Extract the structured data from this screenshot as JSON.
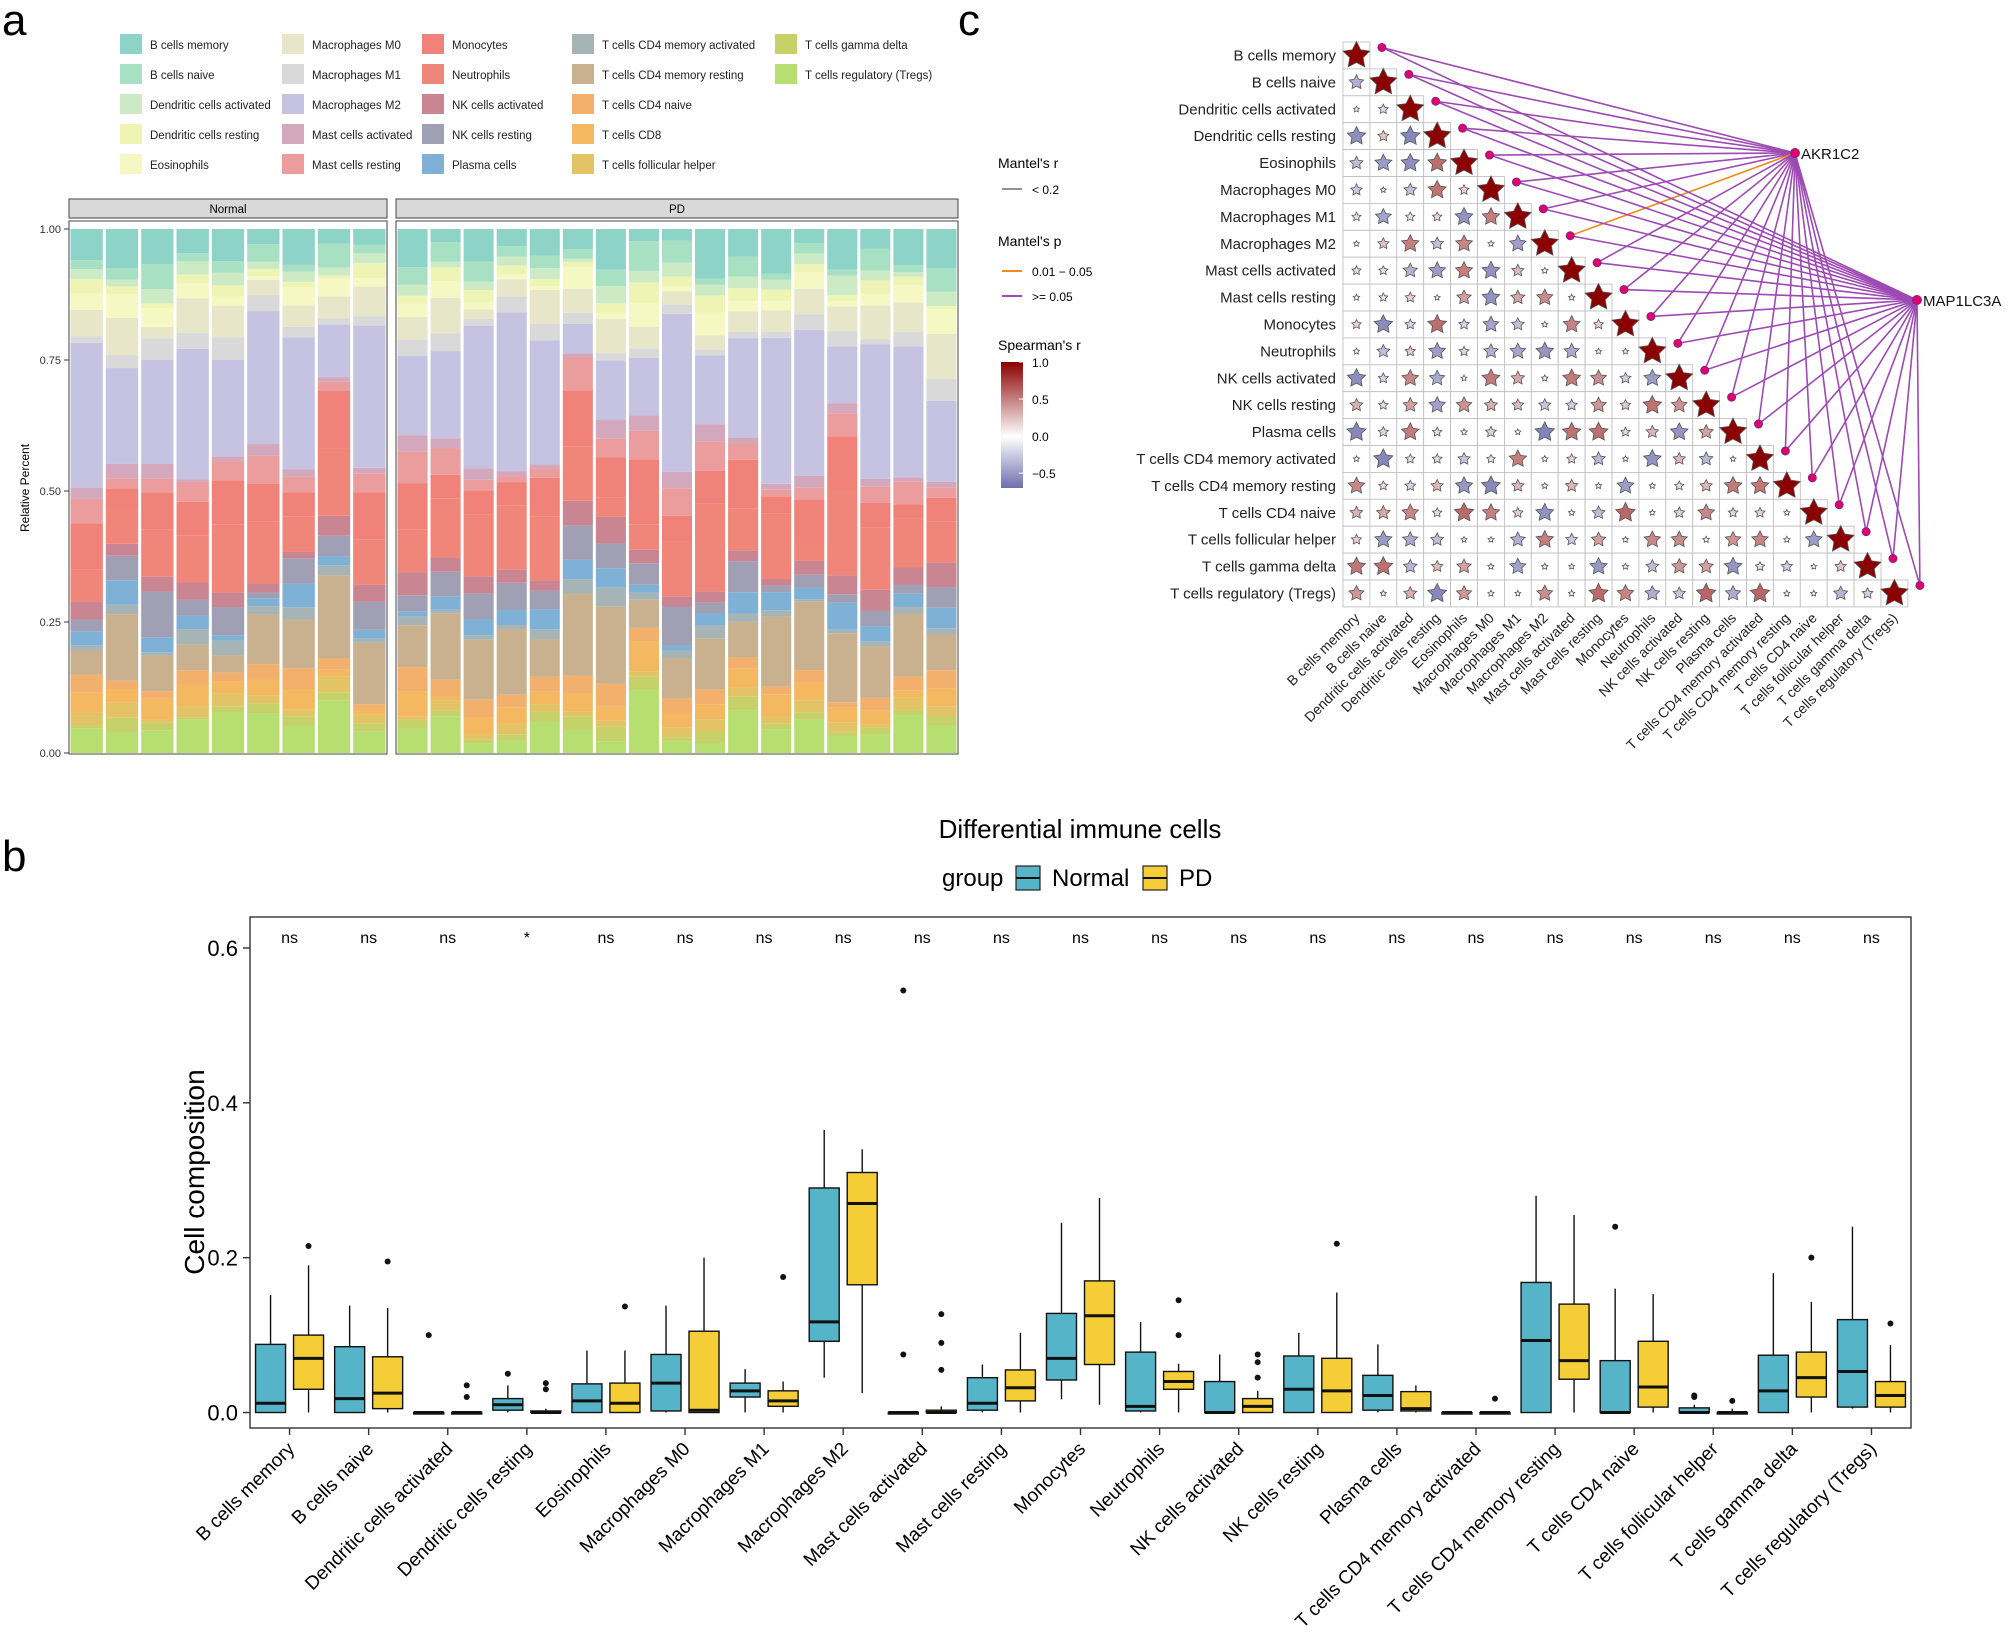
{
  "panels": {
    "a": "a",
    "b": "b",
    "c": "c"
  },
  "cell_types": [
    "B cells memory",
    "B cells naive",
    "Dendritic cells activated",
    "Dendritic cells resting",
    "Eosinophils",
    "Macrophages M0",
    "Macrophages M1",
    "Macrophages M2",
    "Mast cells activated",
    "Mast cells resting",
    "Monocytes",
    "Neutrophils",
    "NK cells activated",
    "NK cells resting",
    "Plasma cells",
    "T cells CD4 memory activated",
    "T cells CD4 memory resting",
    "T cells CD4 naive",
    "T cells CD8",
    "T cells follicular helper",
    "T cells gamma delta",
    "T cells regulatory (Tregs)"
  ],
  "cell_colors": [
    "#8dd3c7",
    "#a8e0c4",
    "#ccebc5",
    "#eef5b4",
    "#f6f8c3",
    "#e8e6c8",
    "#d9d9d9",
    "#c6c3e2",
    "#d4a8bc",
    "#eb9c9c",
    "#f0827a",
    "#f08679",
    "#c98592",
    "#a09fb3",
    "#7fb1d6",
    "#a6b4b5",
    "#c9b18f",
    "#f2b06c",
    "#f4b860",
    "#e2c466",
    "#c7d16a",
    "#b6de70"
  ],
  "chart_data": [
    {
      "type": "bar",
      "subtype": "stacked-100",
      "facets": [
        "Normal",
        "PD"
      ],
      "ylabel": "Relative Percent",
      "ylim": [
        0,
        1
      ],
      "yticks": [
        "0.00",
        "0.25",
        "0.50",
        "0.75",
        "1.00"
      ],
      "samples_per_facet": [
        9,
        17
      ]
    },
    {
      "type": "box",
      "title": "Differential immune cells",
      "legend_title": "group",
      "groups": [
        "Normal",
        "PD"
      ],
      "group_colors": [
        "#56b4c8",
        "#f5cd36"
      ],
      "ylabel": "Cell composition",
      "ylim": [
        -0.02,
        0.64
      ],
      "yticks": [
        "0.0",
        "0.2",
        "0.4",
        "0.6"
      ],
      "categories": [
        "B cells memory",
        "B cells naive",
        "Dendritic cells activated",
        "Dendritic cells resting",
        "Eosinophils",
        "Macrophages M0",
        "Macrophages M1",
        "Macrophages M2",
        "Mast cells activated",
        "Mast cells resting",
        "Monocytes",
        "Neutrophils",
        "NK cells activated",
        "NK cells resting",
        "Plasma cells",
        "T cells CD4 memory activated",
        "T cells CD4 memory resting",
        "T cells CD4 naive",
        "T cells follicular helper",
        "T cells gamma delta",
        "T cells regulatory (Tregs)"
      ],
      "significance": [
        "ns",
        "ns",
        "ns",
        "*",
        "ns",
        "ns",
        "ns",
        "ns",
        "ns",
        "ns",
        "ns",
        "ns",
        "ns",
        "ns",
        "ns",
        "ns",
        "ns",
        "ns",
        "ns",
        "ns",
        "ns"
      ],
      "series": [
        {
          "name": "Normal",
          "boxes": [
            [
              0,
              0,
              0.012,
              0.088,
              0.152
            ],
            [
              0,
              0,
              0.018,
              0.085,
              0.138
            ],
            [
              0,
              0,
              0,
              0,
              0
            ],
            [
              0,
              0.003,
              0.01,
              0.018,
              0.035
            ],
            [
              0,
              0,
              0.015,
              0.037,
              0.08
            ],
            [
              0,
              0.002,
              0.038,
              0.075,
              0.138
            ],
            [
              0,
              0.02,
              0.028,
              0.038,
              0.056
            ],
            [
              0.045,
              0.092,
              0.117,
              0.29,
              0.365
            ],
            [
              0,
              0,
              0,
              0,
              0
            ],
            [
              0,
              0.003,
              0.012,
              0.045,
              0.062
            ],
            [
              0.017,
              0.042,
              0.07,
              0.128,
              0.245
            ],
            [
              0,
              0.002,
              0.008,
              0.078,
              0.117
            ],
            [
              0,
              0,
              0,
              0.04,
              0.075
            ],
            [
              0,
              0,
              0.03,
              0.073,
              0.103
            ],
            [
              0,
              0.003,
              0.022,
              0.048,
              0.088
            ],
            [
              0,
              0,
              0,
              0,
              0
            ],
            [
              0,
              0,
              0.093,
              0.168,
              0.28
            ],
            [
              0,
              0,
              0,
              0.067,
              0.16
            ],
            [
              0,
              0,
              0,
              0.006,
              0.01
            ],
            [
              0,
              0,
              0.028,
              0.074,
              0.18
            ],
            [
              0.005,
              0.007,
              0.053,
              0.12,
              0.24
            ]
          ],
          "outliers": [
            [],
            [],
            [
              0.1
            ],
            [
              0.05
            ],
            [],
            [],
            [],
            [],
            [
              0.545,
              0.075
            ],
            [],
            [],
            [],
            [],
            [],
            [],
            [],
            [],
            [
              0.24
            ],
            [
              0.02,
              0.022
            ],
            [],
            []
          ]
        },
        {
          "name": "PD",
          "boxes": [
            [
              0,
              0.03,
              0.07,
              0.1,
              0.19
            ],
            [
              0,
              0.005,
              0.025,
              0.072,
              0.135
            ],
            [
              0,
              0,
              0,
              0,
              0
            ],
            [
              0,
              0,
              0,
              0.002,
              0.005
            ],
            [
              0,
              0,
              0.012,
              0.038,
              0.08
            ],
            [
              0,
              0,
              0.003,
              0.105,
              0.2
            ],
            [
              0,
              0.008,
              0.015,
              0.028,
              0.04
            ],
            [
              0.025,
              0.165,
              0.27,
              0.31,
              0.34
            ],
            [
              0,
              0,
              0,
              0.003,
              0.008
            ],
            [
              0,
              0.015,
              0.032,
              0.055,
              0.103
            ],
            [
              0.01,
              0.062,
              0.125,
              0.17,
              0.277
            ],
            [
              0,
              0.03,
              0.04,
              0.053,
              0.063
            ],
            [
              0,
              0,
              0.008,
              0.018,
              0.028
            ],
            [
              0,
              0,
              0.028,
              0.07,
              0.155
            ],
            [
              0,
              0.002,
              0.005,
              0.027,
              0.035
            ],
            [
              0,
              0,
              0,
              0,
              0.002
            ],
            [
              0,
              0.043,
              0.067,
              0.14,
              0.255
            ],
            [
              0,
              0.007,
              0.033,
              0.092,
              0.153
            ],
            [
              0,
              0,
              0,
              0,
              0.005
            ],
            [
              0,
              0.02,
              0.045,
              0.078,
              0.143
            ],
            [
              0,
              0.007,
              0.022,
              0.04,
              0.087
            ]
          ],
          "outliers": [
            [
              0.215
            ],
            [
              0.195
            ],
            [
              0.035,
              0.02
            ],
            [
              0.038,
              0.03
            ],
            [
              0.137
            ],
            [],
            [
              0.175
            ],
            [],
            [
              0.127,
              0.09,
              0.055
            ],
            [],
            [],
            [
              0.145,
              0.1
            ],
            [
              0.075,
              0.065,
              0.045
            ],
            [
              0.218
            ],
            [],
            [
              0.018
            ],
            [],
            [],
            [
              0.015
            ],
            [
              0.2
            ],
            [
              0.115
            ]
          ]
        }
      ]
    },
    {
      "type": "heatmap",
      "subtype": "correlation-network",
      "labels": [
        "B cells memory",
        "B cells naive",
        "Dendritic cells activated",
        "Dendritic cells resting",
        "Eosinophils",
        "Macrophages M0",
        "Macrophages M1",
        "Macrophages M2",
        "Mast cells activated",
        "Mast cells resting",
        "Monocytes",
        "Neutrophils",
        "NK cells activated",
        "NK cells resting",
        "Plasma cells",
        "T cells CD4 memory activated",
        "T cells CD4 memory resting",
        "T cells CD4 naive",
        "T cells follicular helper",
        "T cells gamma delta",
        "T cells regulatory (Tregs)"
      ],
      "genes": [
        "AKR1C2",
        "MAP1LC3A"
      ],
      "legend": {
        "mantel_r_title": "Mantel's r",
        "mantel_r_items": [
          "< 0.2"
        ],
        "mantel_p_title": "Mantel's p",
        "mantel_p_items": [
          {
            "label": "0.01 − 0.05",
            "color": "#f08b1e"
          },
          {
            "label": ">= 0.05",
            "color": "#9d4ab4"
          }
        ],
        "spearman_title": "Spearman's r",
        "spearman_ticks": [
          "1.0",
          "0.5",
          "0.0",
          "−0.5"
        ],
        "spearman_range": [
          -0.7,
          1.0
        ],
        "colors": [
          "#6e6fae",
          "#ffffff",
          "#8b0000"
        ]
      },
      "significant_links": [
        {
          "gene": "AKR1C2",
          "label": "Macrophages M2"
        }
      ]
    }
  ]
}
